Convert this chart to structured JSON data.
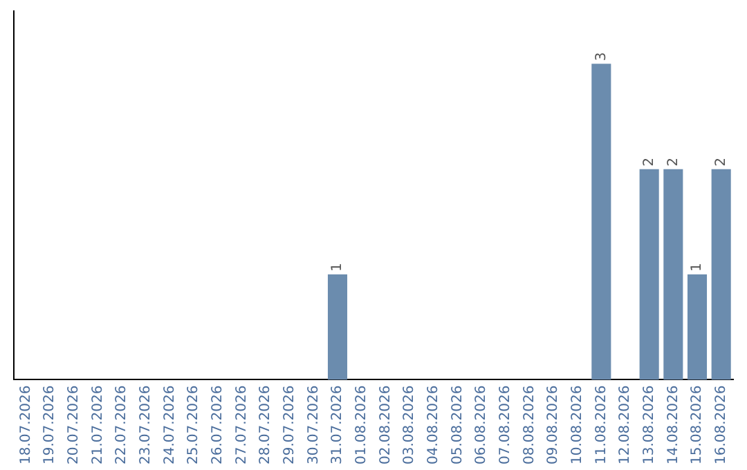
{
  "chart_data": {
    "type": "bar",
    "categories": [
      "18.07.2026",
      "19.07.2026",
      "20.07.2026",
      "21.07.2026",
      "22.07.2026",
      "23.07.2026",
      "24.07.2026",
      "25.07.2026",
      "26.07.2026",
      "27.07.2026",
      "28.07.2026",
      "29.07.2026",
      "30.07.2026",
      "31.07.2026",
      "01.08.2026",
      "02.08.2026",
      "03.08.2026",
      "04.08.2026",
      "05.08.2026",
      "06.08.2026",
      "07.08.2026",
      "08.08.2026",
      "09.08.2026",
      "10.08.2026",
      "11.08.2026",
      "12.08.2026",
      "13.08.2026",
      "14.08.2026",
      "15.08.2026",
      "16.08.2026"
    ],
    "values": [
      null,
      null,
      null,
      null,
      null,
      null,
      null,
      null,
      null,
      null,
      null,
      null,
      null,
      1,
      null,
      null,
      null,
      null,
      null,
      null,
      null,
      null,
      null,
      null,
      3,
      null,
      2,
      2,
      1,
      2
    ],
    "value_labels": [
      null,
      null,
      null,
      null,
      null,
      null,
      null,
      null,
      null,
      null,
      null,
      null,
      null,
      "1",
      null,
      null,
      null,
      null,
      null,
      null,
      null,
      null,
      null,
      null,
      "3",
      null,
      "2",
      "2",
      "1",
      "2"
    ],
    "color": "#6b8cae",
    "tick_labels": "x"
  }
}
